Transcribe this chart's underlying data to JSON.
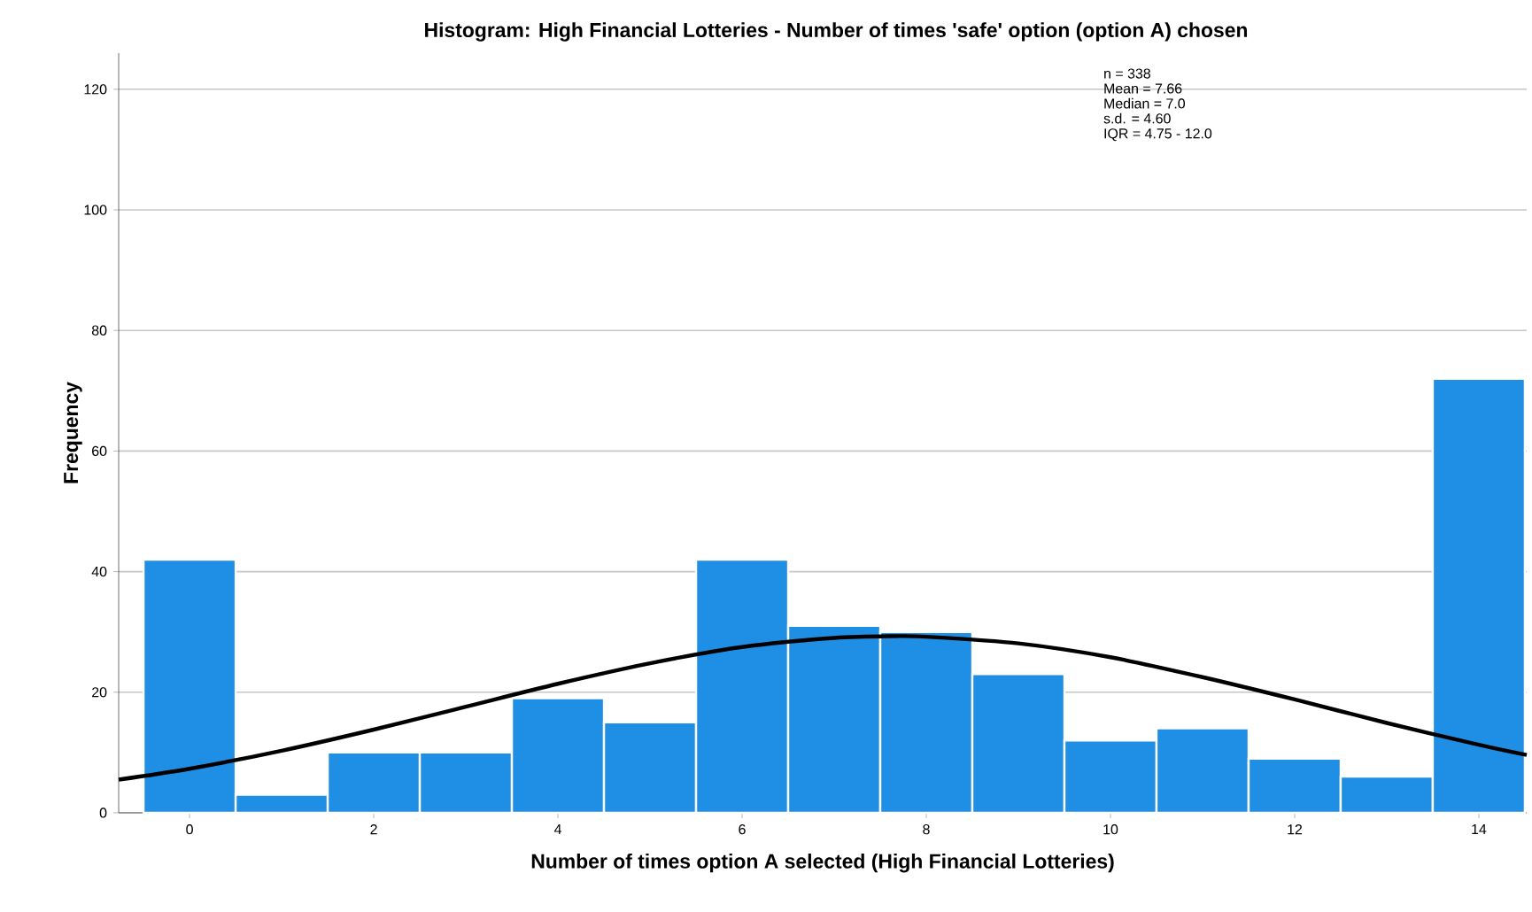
{
  "chart_data": {
    "type": "histogram",
    "title": "Histogram: High Financial Lotteries - Number of times 'safe' option (option A) chosen",
    "xlabel": "Number of times option A selected (High Financial Lotteries)",
    "ylabel": "Frequency",
    "bins": [
      -0.5,
      0.5,
      1.5,
      2.5,
      3.5,
      4.5,
      5.5,
      6.5,
      7.5,
      8.5,
      9.5,
      10.5,
      11.5,
      12.5,
      13.5,
      14.5
    ],
    "values": [
      42,
      3,
      10,
      10,
      19,
      15,
      42,
      31,
      30,
      23,
      12,
      14,
      9,
      6,
      72
    ],
    "color": "#1f8fe5",
    "series": [
      {
        "type": "line",
        "color": "#000000",
        "x": [
          -0.77,
          0,
          1,
          2,
          3,
          4,
          5,
          6,
          7,
          7.66,
          8,
          9,
          10,
          11,
          12,
          13,
          14,
          14.52
        ],
        "values": [
          5.5,
          7.3,
          10.3,
          13.8,
          17.6,
          21.4,
          24.8,
          27.5,
          29.0,
          29.3,
          29.2,
          28.1,
          25.8,
          22.5,
          18.8,
          14.9,
          11.3,
          9.6
        ]
      }
    ],
    "xlim": [
      -0.77,
      14.52
    ],
    "ylim": [
      0,
      126
    ],
    "xticks": [
      0,
      2,
      4,
      6,
      8,
      10,
      12,
      14
    ],
    "yticks": [
      0,
      20,
      40,
      60,
      80,
      100,
      120
    ],
    "grid": "y",
    "annotations": [
      "n = 338",
      "Mean = 7.66",
      "Median = 7.0",
      "s.d. = 4.60",
      "IQR = 4.75 - 12.0"
    ]
  }
}
